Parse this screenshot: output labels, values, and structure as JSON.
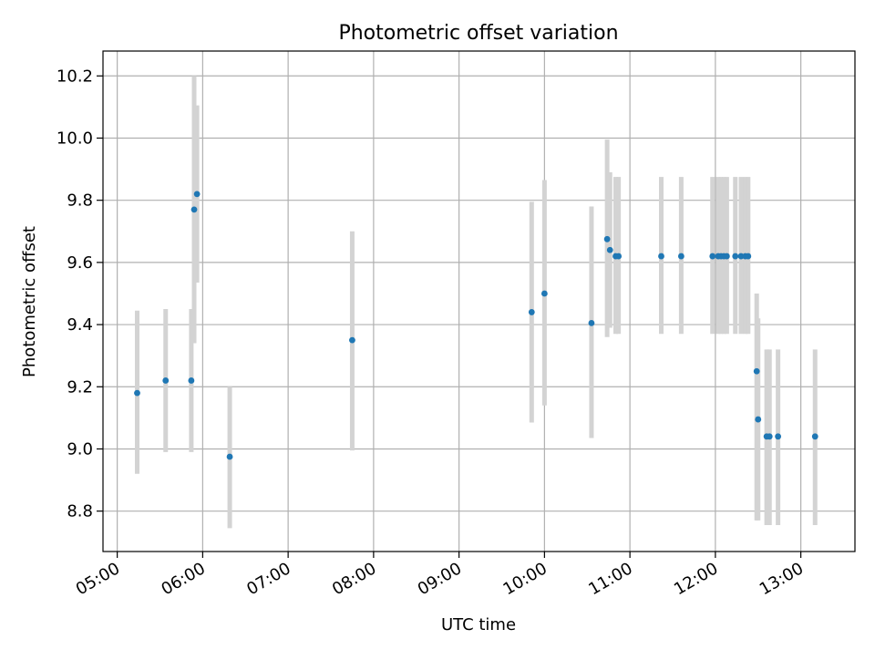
{
  "chart_data": {
    "type": "scatter",
    "title": "Photometric offset variation",
    "xlabel": "UTC time",
    "ylabel": "Photometric offset",
    "x_axis": {
      "kind": "time",
      "range": [
        "04:50",
        "13:38"
      ],
      "ticks": [
        "05:00",
        "06:00",
        "07:00",
        "08:00",
        "09:00",
        "10:00",
        "11:00",
        "12:00",
        "13:00"
      ]
    },
    "y_axis": {
      "range": [
        8.67,
        10.28
      ],
      "ticks": [
        "8.8",
        "9.0",
        "9.2",
        "9.4",
        "9.6",
        "9.8",
        "10.0",
        "10.2"
      ]
    },
    "grid": true,
    "colors": {
      "points": "#1f77b4",
      "error_bars": "#d3d3d3",
      "grid": "#b0b0b0"
    },
    "series": [
      {
        "points": [
          {
            "x": "05:14",
            "y": 9.18,
            "ylow": 8.92,
            "yhigh": 9.445
          },
          {
            "x": "05:34",
            "y": 9.22,
            "ylow": 8.99,
            "yhigh": 9.45
          },
          {
            "x": "05:52",
            "y": 9.22,
            "ylow": 8.99,
            "yhigh": 9.45
          },
          {
            "x": "05:54",
            "y": 9.77,
            "ylow": 9.34,
            "yhigh": 10.2
          },
          {
            "x": "05:56",
            "y": 9.82,
            "ylow": 9.535,
            "yhigh": 10.105
          },
          {
            "x": "06:19",
            "y": 8.975,
            "ylow": 8.745,
            "yhigh": 9.2
          },
          {
            "x": "07:45",
            "y": 9.35,
            "ylow": 8.995,
            "yhigh": 9.7
          },
          {
            "x": "09:51",
            "y": 9.44,
            "ylow": 9.085,
            "yhigh": 9.795
          },
          {
            "x": "10:00",
            "y": 9.5,
            "ylow": 9.14,
            "yhigh": 9.865
          },
          {
            "x": "10:33",
            "y": 9.405,
            "ylow": 9.035,
            "yhigh": 9.78
          },
          {
            "x": "10:44",
            "y": 9.675,
            "ylow": 9.36,
            "yhigh": 9.995
          },
          {
            "x": "10:46",
            "y": 9.64,
            "ylow": 9.39,
            "yhigh": 9.89
          },
          {
            "x": "10:50",
            "y": 9.62,
            "ylow": 9.37,
            "yhigh": 9.875
          },
          {
            "x": "10:52",
            "y": 9.62,
            "ylow": 9.37,
            "yhigh": 9.875
          },
          {
            "x": "11:22",
            "y": 9.62,
            "ylow": 9.37,
            "yhigh": 9.875
          },
          {
            "x": "11:36",
            "y": 9.62,
            "ylow": 9.37,
            "yhigh": 9.875
          },
          {
            "x": "11:58",
            "y": 9.62,
            "ylow": 9.37,
            "yhigh": 9.875
          },
          {
            "x": "12:02",
            "y": 9.62,
            "ylow": 9.37,
            "yhigh": 9.875
          },
          {
            "x": "12:04",
            "y": 9.62,
            "ylow": 9.37,
            "yhigh": 9.875
          },
          {
            "x": "12:06",
            "y": 9.62,
            "ylow": 9.37,
            "yhigh": 9.875
          },
          {
            "x": "12:08",
            "y": 9.62,
            "ylow": 9.37,
            "yhigh": 9.875
          },
          {
            "x": "12:14",
            "y": 9.62,
            "ylow": 9.37,
            "yhigh": 9.875
          },
          {
            "x": "12:18",
            "y": 9.62,
            "ylow": 9.37,
            "yhigh": 9.875
          },
          {
            "x": "12:21",
            "y": 9.62,
            "ylow": 9.37,
            "yhigh": 9.875
          },
          {
            "x": "12:23",
            "y": 9.62,
            "ylow": 9.37,
            "yhigh": 9.875
          },
          {
            "x": "12:29",
            "y": 9.25,
            "ylow": 8.77,
            "yhigh": 9.5
          },
          {
            "x": "12:30",
            "y": 9.095,
            "ylow": 8.77,
            "yhigh": 9.42
          },
          {
            "x": "12:36",
            "y": 9.04,
            "ylow": 8.755,
            "yhigh": 9.32
          },
          {
            "x": "12:38",
            "y": 9.04,
            "ylow": 8.755,
            "yhigh": 9.32
          },
          {
            "x": "12:44",
            "y": 9.04,
            "ylow": 8.755,
            "yhigh": 9.32
          },
          {
            "x": "13:10",
            "y": 9.04,
            "ylow": 8.755,
            "yhigh": 9.32
          }
        ]
      }
    ]
  }
}
